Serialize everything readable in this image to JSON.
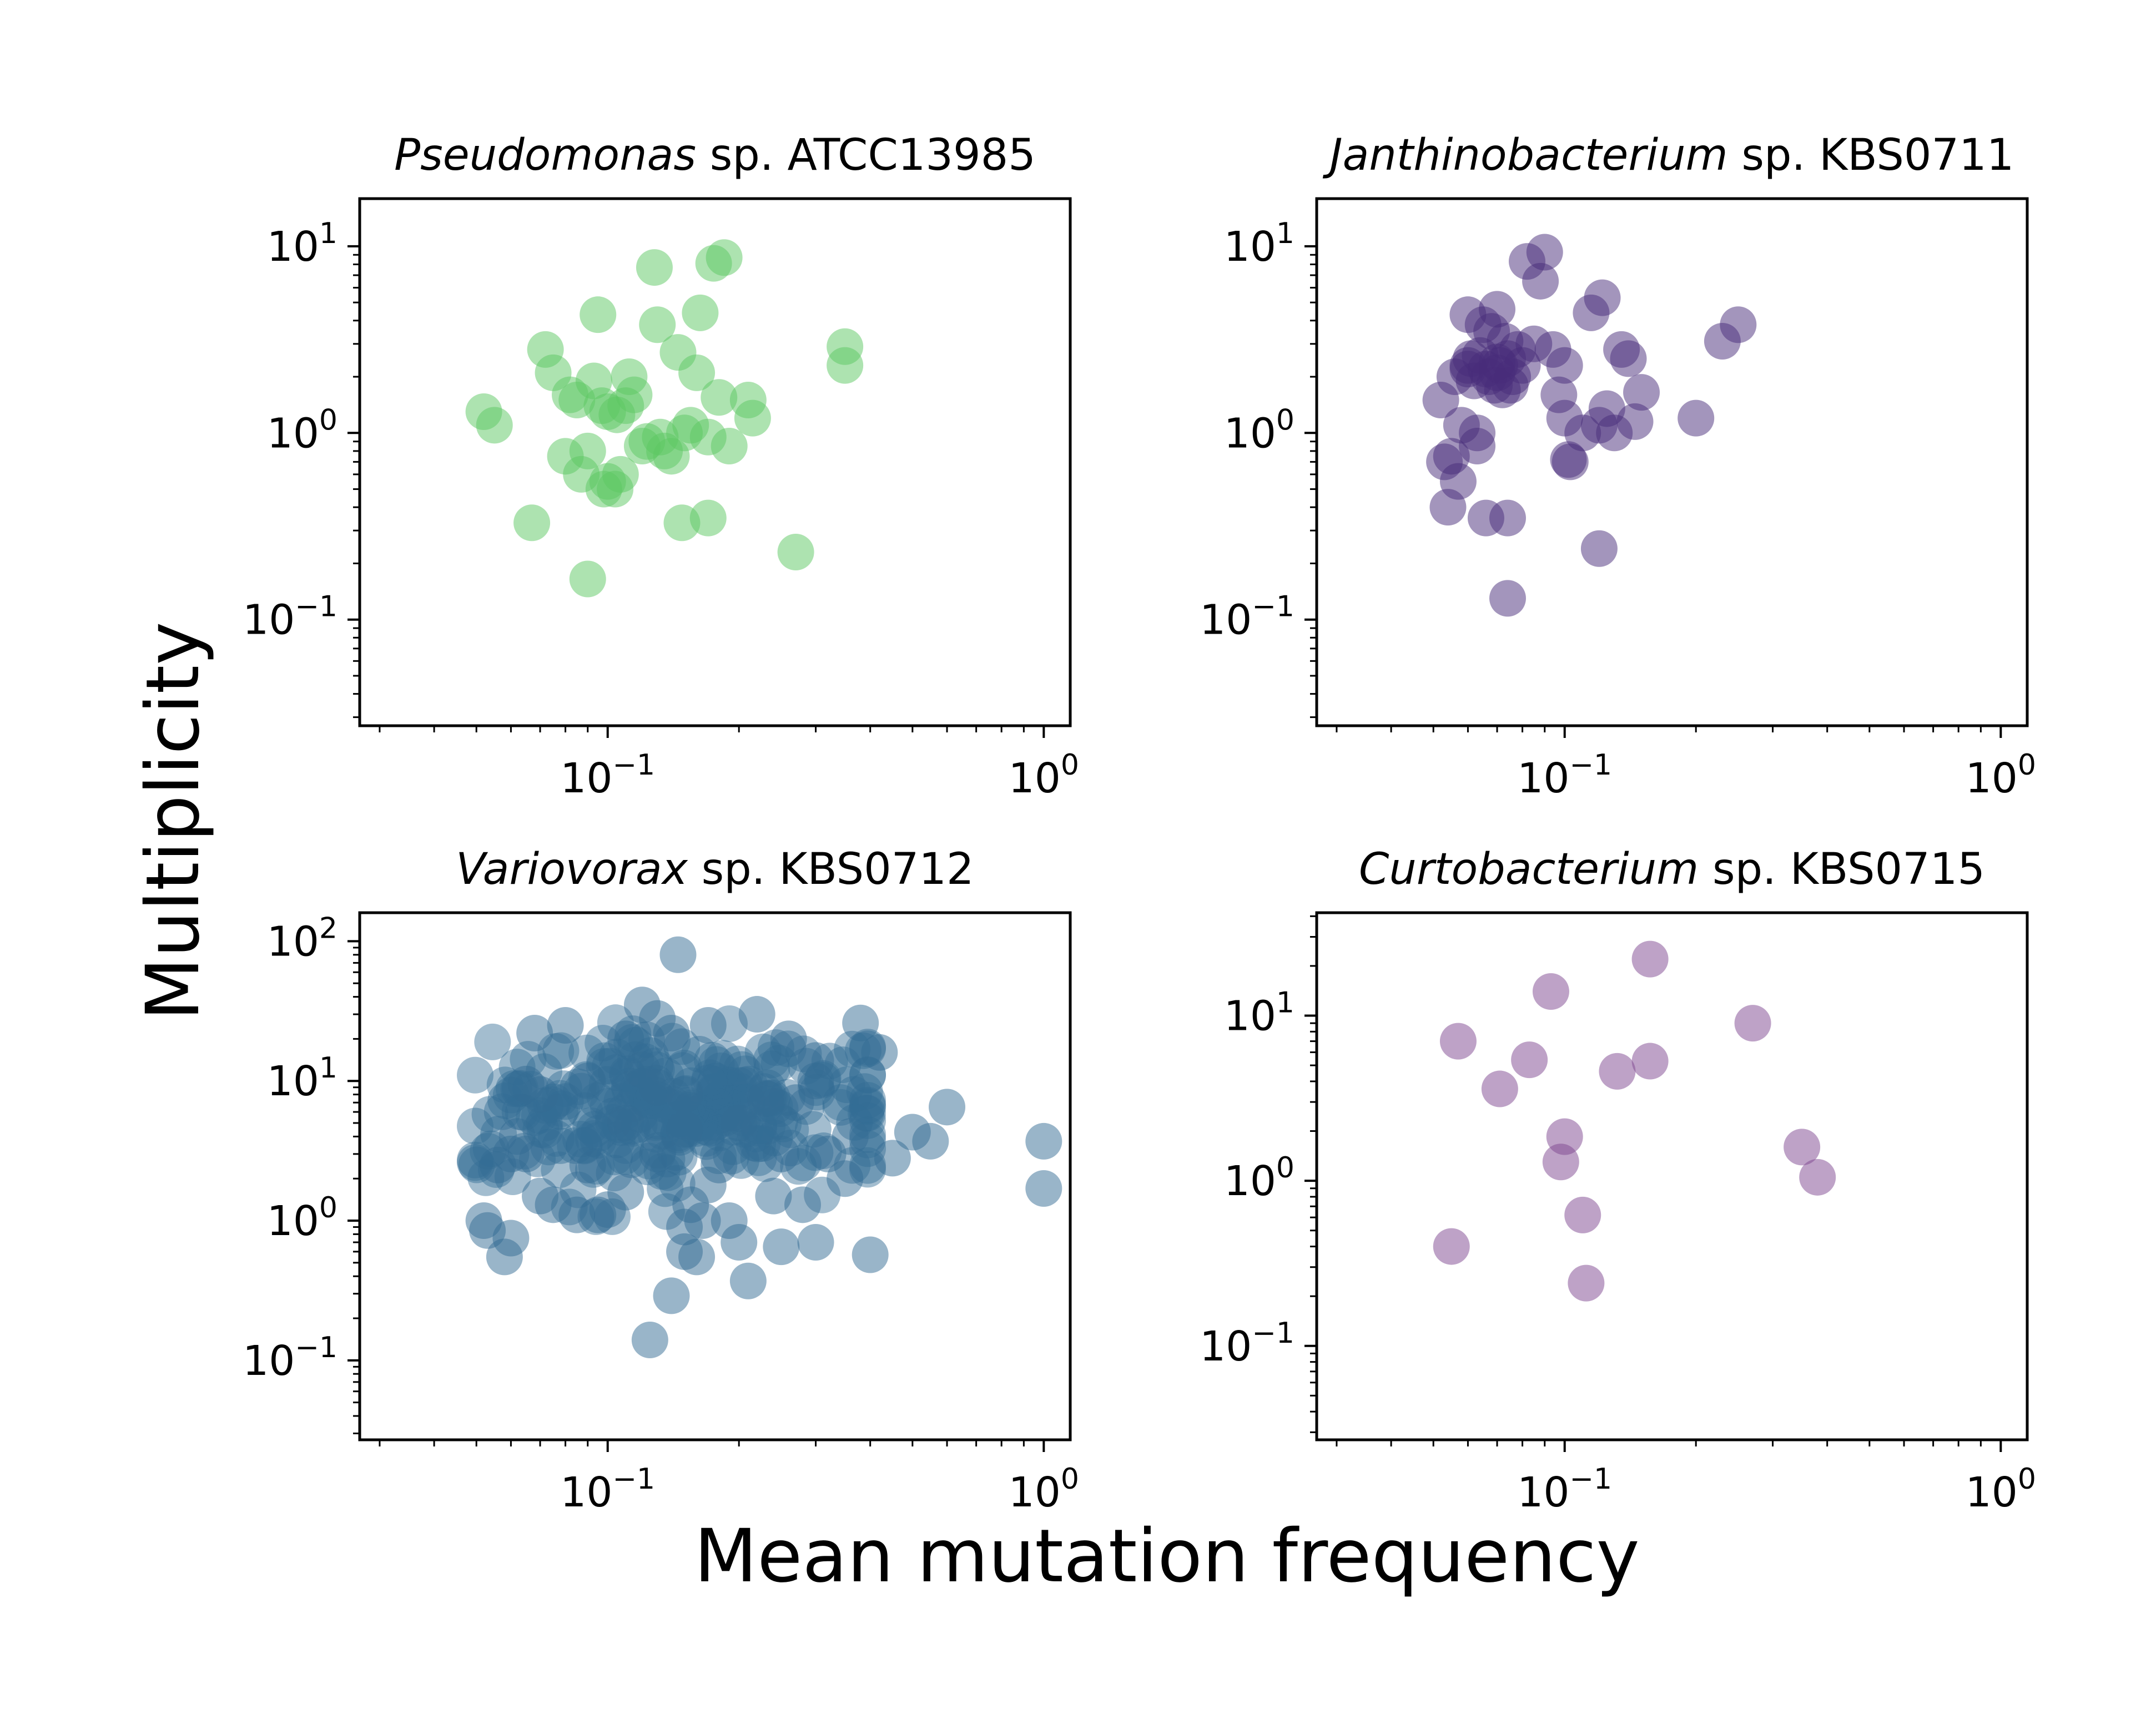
{
  "figure": {
    "xlabel": "Mean mutation frequency",
    "ylabel": "Multiplicity"
  },
  "chart_data": [
    {
      "type": "scatter",
      "title_italic": "Pseudomonas",
      "title_rest": " sp. ATCC13985",
      "color": "#5bc862",
      "xscale": "log",
      "yscale": "log",
      "xlim": [
        0.027,
        1.15
      ],
      "ylim": [
        0.027,
        18
      ],
      "xticks": [
        {
          "v": 0.1,
          "m": "10",
          "e": "−1"
        },
        {
          "v": 1,
          "m": "10",
          "e": "0"
        }
      ],
      "yticks": [
        {
          "v": 0.1,
          "m": "10",
          "e": "−1"
        },
        {
          "v": 1,
          "m": "10",
          "e": "0"
        },
        {
          "v": 10,
          "m": "10",
          "e": "1"
        }
      ],
      "x": [
        0.052,
        0.055,
        0.072,
        0.075,
        0.08,
        0.082,
        0.085,
        0.087,
        0.09,
        0.093,
        0.095,
        0.097,
        0.098,
        0.1,
        0.1,
        0.104,
        0.105,
        0.107,
        0.11,
        0.112,
        0.115,
        0.12,
        0.123,
        0.128,
        0.13,
        0.132,
        0.135,
        0.14,
        0.145,
        0.148,
        0.15,
        0.155,
        0.16,
        0.163,
        0.17,
        0.17,
        0.175,
        0.18,
        0.185,
        0.19,
        0.21,
        0.215,
        0.27,
        0.35,
        0.35,
        0.067,
        0.09
      ],
      "y": [
        1.3,
        1.1,
        2.8,
        2.1,
        0.75,
        1.6,
        1.5,
        0.6,
        0.8,
        1.9,
        4.3,
        1.4,
        0.5,
        1.3,
        0.55,
        0.5,
        1.25,
        0.6,
        1.4,
        2.0,
        1.6,
        0.85,
        0.9,
        7.7,
        3.8,
        0.95,
        0.8,
        0.75,
        2.7,
        0.33,
        1.0,
        1.1,
        2.1,
        4.4,
        0.35,
        0.95,
        8.1,
        1.55,
        8.7,
        0.85,
        1.5,
        1.2,
        0.23,
        2.9,
        2.3,
        0.33,
        0.165
      ]
    },
    {
      "type": "scatter",
      "title_italic": "Janthinobacterium",
      "title_rest": " sp. KBS0711",
      "color": "#472c7a",
      "xscale": "log",
      "yscale": "log",
      "xlim": [
        0.027,
        1.15
      ],
      "ylim": [
        0.027,
        18
      ],
      "xticks": [
        {
          "v": 0.1,
          "m": "10",
          "e": "−1"
        },
        {
          "v": 1,
          "m": "10",
          "e": "0"
        }
      ],
      "yticks": [
        {
          "v": 0.1,
          "m": "10",
          "e": "−1"
        },
        {
          "v": 1,
          "m": "10",
          "e": "0"
        },
        {
          "v": 10,
          "m": "10",
          "e": "1"
        }
      ],
      "x": [
        0.052,
        0.053,
        0.054,
        0.055,
        0.056,
        0.057,
        0.058,
        0.06,
        0.06,
        0.061,
        0.062,
        0.063,
        0.063,
        0.064,
        0.065,
        0.066,
        0.067,
        0.068,
        0.069,
        0.07,
        0.07,
        0.071,
        0.072,
        0.073,
        0.074,
        0.075,
        0.076,
        0.078,
        0.08,
        0.082,
        0.085,
        0.088,
        0.09,
        0.094,
        0.097,
        0.1,
        0.1,
        0.102,
        0.103,
        0.11,
        0.115,
        0.12,
        0.122,
        0.125,
        0.13,
        0.135,
        0.14,
        0.145,
        0.15,
        0.2,
        0.23,
        0.25,
        0.06,
        0.066,
        0.07,
        0.074,
        0.12,
        0.074
      ],
      "y": [
        1.5,
        0.7,
        0.4,
        0.75,
        2.0,
        0.55,
        1.1,
        2.3,
        4.3,
        2.5,
        1.9,
        1.0,
        0.85,
        2.6,
        3.8,
        2.2,
        2.0,
        3.5,
        1.8,
        2.1,
        4.6,
        2.3,
        1.7,
        3.1,
        2.5,
        1.8,
        2.0,
        2.8,
        2.3,
        8.3,
        3.0,
        6.5,
        9.3,
        2.8,
        1.6,
        1.2,
        2.3,
        0.72,
        0.7,
        1.0,
        4.4,
        1.1,
        5.3,
        1.35,
        1.0,
        2.8,
        2.5,
        1.15,
        1.65,
        1.2,
        3.1,
        3.8,
        2.2,
        0.35,
        2.4,
        0.35,
        0.24,
        0.13
      ]
    },
    {
      "type": "scatter",
      "title_italic": "Variovorax",
      "title_rest": " sp. KBS0712",
      "color": "#336c94",
      "xscale": "log",
      "yscale": "log",
      "xlim": [
        0.027,
        1.15
      ],
      "ylim": [
        0.027,
        160
      ],
      "xticks": [
        {
          "v": 0.1,
          "m": "10",
          "e": "−1"
        },
        {
          "v": 1,
          "m": "10",
          "e": "0"
        }
      ],
      "yticks": [
        {
          "v": 0.1,
          "m": "10",
          "e": "−1"
        },
        {
          "v": 1,
          "m": "10",
          "e": "0"
        },
        {
          "v": 10,
          "m": "10",
          "e": "1"
        },
        {
          "v": 100,
          "m": "10",
          "e": "2"
        }
      ],
      "cloud": {
        "count": 280,
        "x_center": 0.14,
        "x_spread": 0.24,
        "y_center": 6.0,
        "y_spread": 0.27,
        "seed": 7
      },
      "x": [
        0.052,
        0.053,
        0.056,
        0.058,
        0.06,
        0.062,
        0.065,
        0.068,
        0.07,
        0.075,
        0.08,
        0.085,
        0.09,
        0.095,
        0.1,
        0.11,
        0.12,
        0.125,
        0.13,
        0.14,
        0.145,
        0.15,
        0.155,
        0.16,
        0.165,
        0.17,
        0.18,
        0.19,
        0.2,
        0.21,
        0.22,
        0.24,
        0.25,
        0.26,
        0.28,
        0.3,
        0.32,
        0.35,
        0.38,
        0.4,
        0.42,
        0.45,
        0.5,
        0.55,
        0.6,
        1.0,
        1.0,
        0.07,
        0.09,
        0.11,
        0.13,
        0.15,
        0.2,
        0.23,
        0.25,
        0.3,
        0.36,
        0.12,
        0.13,
        0.15,
        0.15,
        0.17,
        0.065,
        0.11,
        0.14,
        0.06,
        0.27,
        0.3
      ],
      "y": [
        1.0,
        0.85,
        2.5,
        0.55,
        0.75,
        4.0,
        3.0,
        22,
        1.5,
        1.3,
        25,
        1.1,
        2.5,
        1.1,
        1.2,
        1.6,
        35,
        0.14,
        28,
        0.29,
        80,
        0.6,
        1.3,
        0.55,
        1.0,
        25,
        2.5,
        1.0,
        0.7,
        0.37,
        30,
        1.5,
        0.65,
        20,
        1.3,
        0.7,
        3.0,
        2.0,
        26,
        0.57,
        16,
        2.8,
        4.3,
        3.7,
        6.5,
        3.7,
        1.7,
        8.0,
        10,
        20,
        9.0,
        8.0,
        5.0,
        7.5,
        3.0,
        14,
        4.0,
        12,
        3.0,
        0.9,
        4.5,
        1.8,
        9.5,
        5.0,
        22,
        3.0,
        7.0,
        10
      ]
    },
    {
      "type": "scatter",
      "title_italic": "Curtobacterium",
      "title_rest": " sp. KBS0715",
      "color": "#7e4590",
      "xscale": "log",
      "yscale": "log",
      "xlim": [
        0.027,
        1.15
      ],
      "ylim": [
        0.027,
        42
      ],
      "xticks": [
        {
          "v": 0.1,
          "m": "10",
          "e": "−1"
        },
        {
          "v": 1,
          "m": "10",
          "e": "0"
        }
      ],
      "yticks": [
        {
          "v": 0.1,
          "m": "10",
          "e": "−1"
        },
        {
          "v": 1,
          "m": "10",
          "e": "0"
        },
        {
          "v": 10,
          "m": "10",
          "e": "1"
        }
      ],
      "x": [
        0.055,
        0.057,
        0.071,
        0.083,
        0.093,
        0.098,
        0.1,
        0.11,
        0.112,
        0.132,
        0.157,
        0.157,
        0.27,
        0.35,
        0.38
      ],
      "y": [
        0.4,
        7.0,
        3.6,
        5.4,
        14,
        1.3,
        1.85,
        0.62,
        0.24,
        4.6,
        5.3,
        22,
        9.0,
        1.6,
        1.05
      ]
    }
  ]
}
